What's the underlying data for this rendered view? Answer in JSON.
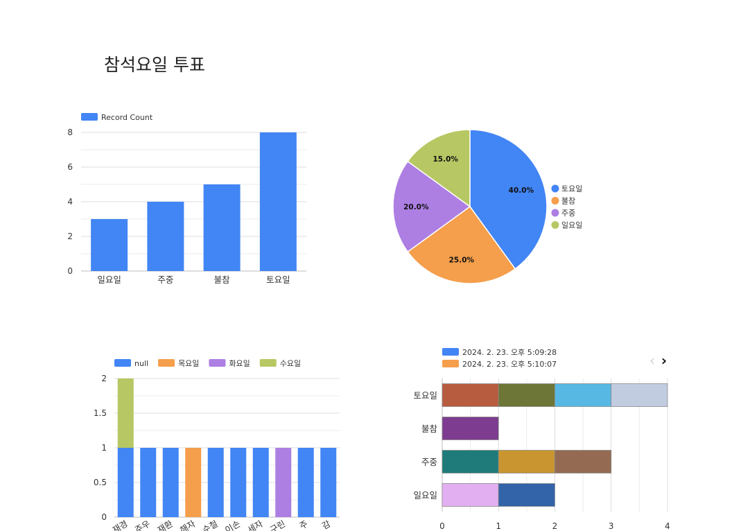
{
  "page": {
    "title": "참석요일 투표"
  },
  "chart_data": [
    {
      "type": "bar",
      "legend": [
        "Record Count"
      ],
      "categories": [
        "일요일",
        "주중",
        "불참",
        "토요일"
      ],
      "series": [
        {
          "name": "Record Count",
          "values": [
            3,
            4,
            5,
            8
          ],
          "color": "#4285f4"
        }
      ],
      "ylim": [
        0,
        8
      ],
      "yticks": [
        0,
        2,
        4,
        6,
        8
      ],
      "grid": true,
      "legend_position": "top-left"
    },
    {
      "type": "pie",
      "slices": [
        {
          "label": "토요일",
          "value": 40.0,
          "display": "40.0%",
          "color": "#4285f4"
        },
        {
          "label": "불참",
          "value": 25.0,
          "display": "25.0%",
          "color": "#f59e4c"
        },
        {
          "label": "주중",
          "value": 20.0,
          "display": "20.0%",
          "color": "#ad7fe3"
        },
        {
          "label": "일요일",
          "value": 15.0,
          "display": "15.0%",
          "color": "#b7c763"
        }
      ],
      "legend_position": "right"
    },
    {
      "type": "bar",
      "stacked": true,
      "legend": [
        {
          "name": "null",
          "color": "#4285f4"
        },
        {
          "name": "목요일",
          "color": "#f59e4c"
        },
        {
          "name": "화요일",
          "color": "#ad7fe3"
        },
        {
          "name": "수요일",
          "color": "#b7c763"
        }
      ],
      "categories": [
        "재경",
        "주우",
        "재환",
        "해자",
        "수철",
        "이손",
        "세자",
        "구린",
        "주",
        "감"
      ],
      "series": [
        {
          "name": "null",
          "values": [
            1,
            1,
            1,
            0,
            1,
            1,
            1,
            0,
            1,
            1
          ],
          "color": "#4285f4"
        },
        {
          "name": "목요일",
          "values": [
            0,
            0,
            0,
            1,
            0,
            0,
            0,
            0,
            0,
            0
          ],
          "color": "#f59e4c"
        },
        {
          "name": "화요일",
          "values": [
            0,
            0,
            0,
            0,
            0,
            0,
            0,
            1,
            0,
            0
          ],
          "color": "#ad7fe3"
        },
        {
          "name": "수요일",
          "values": [
            1,
            0,
            0,
            0,
            0,
            0,
            0,
            0,
            0,
            0
          ],
          "color": "#b7c763"
        }
      ],
      "ylim": [
        0,
        2
      ],
      "yticks": [
        "0",
        "0.5",
        "1",
        "1.5",
        "2"
      ],
      "grid": true,
      "legend_position": "top"
    },
    {
      "type": "bar",
      "orientation": "horizontal",
      "stacked": true,
      "legend": [
        {
          "name": "2024. 2. 23. 오후 5:09:28",
          "color": "#4285f4"
        },
        {
          "name": "2024. 2. 23. 오후 5:10:07",
          "color": "#f59e4c"
        }
      ],
      "categories": [
        "토요일",
        "불참",
        "주중",
        "일요일"
      ],
      "segments": [
        [
          "#b85c40",
          "#6e7637",
          "#57b9e3",
          "#c2cce0"
        ],
        [
          "#7d3c8f"
        ],
        [
          "#1f7a7a",
          "#c99530",
          "#946b52"
        ],
        [
          "#e2b0f0",
          "#3363a8"
        ]
      ],
      "xlim": [
        0,
        4
      ],
      "xticks": [
        "0",
        "1",
        "2",
        "3",
        "4"
      ],
      "grid": true,
      "legend_position": "top-left",
      "pager": {
        "prev": "‹",
        "next": "›"
      }
    }
  ]
}
